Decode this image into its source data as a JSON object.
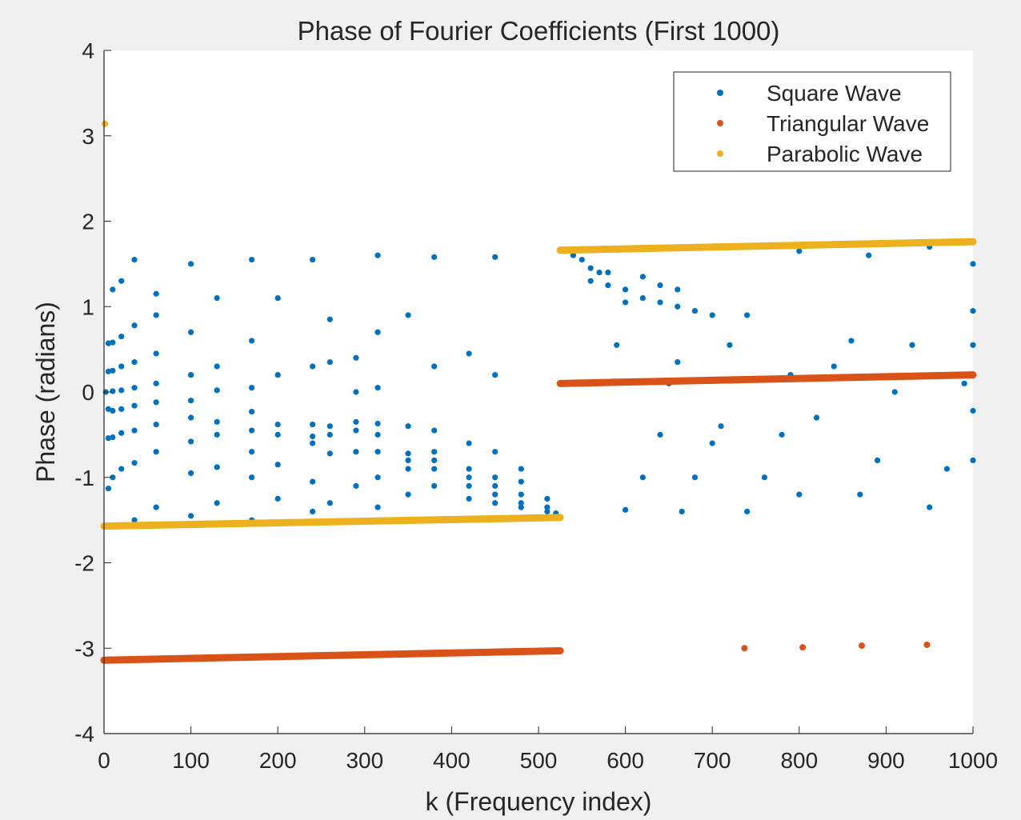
{
  "chart_data": {
    "type": "scatter",
    "title": "Phase of Fourier Coefficients (First 1000)",
    "xlabel": "k (Frequency index)",
    "ylabel": "Phase (radians)",
    "xlim": [
      0,
      1000
    ],
    "ylim": [
      -4,
      4
    ],
    "xticks": [
      "0",
      "100",
      "200",
      "300",
      "400",
      "500",
      "600",
      "700",
      "800",
      "900",
      "1000"
    ],
    "yticks": [
      "4",
      "3",
      "2",
      "1",
      "0",
      "-1",
      "-2",
      "-3",
      "-4"
    ],
    "grid": false,
    "legend": {
      "location": "top-right",
      "entries": [
        "Square Wave",
        "Triangular Wave",
        "Parabolic Wave"
      ]
    },
    "colors": {
      "square": "#0072bd",
      "triangular": "#d95319",
      "parabolic": "#edb120"
    },
    "series": [
      {
        "name": "Square Wave",
        "color": "#0072bd",
        "description_points": [
          [
            2,
            0.0
          ],
          [
            2,
            -1.57
          ],
          [
            5,
            0.57
          ],
          [
            5,
            0.24
          ],
          [
            5,
            -0.2
          ],
          [
            5,
            -0.54
          ],
          [
            5,
            -1.13
          ],
          [
            10,
            1.2
          ],
          [
            10,
            0.58
          ],
          [
            10,
            0.25
          ],
          [
            10,
            0.01
          ],
          [
            10,
            -0.22
          ],
          [
            10,
            -0.53
          ],
          [
            10,
            -1.0
          ],
          [
            20,
            1.3
          ],
          [
            20,
            0.65
          ],
          [
            20,
            0.3
          ],
          [
            20,
            0.02
          ],
          [
            20,
            -0.2
          ],
          [
            20,
            -0.48
          ],
          [
            20,
            -0.9
          ],
          [
            35,
            1.55
          ],
          [
            35,
            0.78
          ],
          [
            35,
            0.35
          ],
          [
            35,
            0.05
          ],
          [
            35,
            -0.16
          ],
          [
            35,
            -0.45
          ],
          [
            35,
            -0.83
          ],
          [
            35,
            -1.5
          ],
          [
            60,
            1.15
          ],
          [
            60,
            0.9
          ],
          [
            60,
            0.45
          ],
          [
            60,
            0.1
          ],
          [
            60,
            -0.12
          ],
          [
            60,
            -0.38
          ],
          [
            60,
            -0.7
          ],
          [
            60,
            -1.35
          ],
          [
            100,
            1.5
          ],
          [
            100,
            0.7
          ],
          [
            100,
            0.2
          ],
          [
            100,
            -0.1
          ],
          [
            100,
            -0.3
          ],
          [
            100,
            -0.58
          ],
          [
            100,
            -0.95
          ],
          [
            100,
            -1.45
          ],
          [
            130,
            1.1
          ],
          [
            130,
            0.3
          ],
          [
            130,
            0.02
          ],
          [
            130,
            -0.35
          ],
          [
            130,
            -0.5
          ],
          [
            130,
            -0.88
          ],
          [
            130,
            -1.3
          ],
          [
            170,
            1.55
          ],
          [
            170,
            0.6
          ],
          [
            170,
            0.05
          ],
          [
            170,
            -0.23
          ],
          [
            170,
            -0.45
          ],
          [
            170,
            -0.7
          ],
          [
            170,
            -1.0
          ],
          [
            170,
            -1.5
          ],
          [
            200,
            1.1
          ],
          [
            200,
            0.2
          ],
          [
            200,
            -0.38
          ],
          [
            200,
            -0.5
          ],
          [
            200,
            -0.85
          ],
          [
            200,
            -1.25
          ],
          [
            240,
            1.55
          ],
          [
            240,
            0.3
          ],
          [
            240,
            -0.38
          ],
          [
            240,
            -0.52
          ],
          [
            240,
            -0.6
          ],
          [
            240,
            -1.05
          ],
          [
            240,
            -1.4
          ],
          [
            260,
            0.85
          ],
          [
            260,
            0.35
          ],
          [
            260,
            -0.4
          ],
          [
            260,
            -0.5
          ],
          [
            260,
            -0.72
          ],
          [
            260,
            -1.3
          ],
          [
            290,
            0.4
          ],
          [
            290,
            0.0
          ],
          [
            290,
            -0.35
          ],
          [
            290,
            -0.45
          ],
          [
            290,
            -0.7
          ],
          [
            290,
            -1.1
          ],
          [
            315,
            1.6
          ],
          [
            315,
            0.7
          ],
          [
            315,
            0.05
          ],
          [
            315,
            -0.37
          ],
          [
            315,
            -0.5
          ],
          [
            315,
            -0.7
          ],
          [
            315,
            -1.0
          ],
          [
            315,
            -1.35
          ],
          [
            350,
            0.9
          ],
          [
            350,
            -0.4
          ],
          [
            350,
            -0.72
          ],
          [
            350,
            -0.8
          ],
          [
            350,
            -0.9
          ],
          [
            350,
            -1.2
          ],
          [
            380,
            1.58
          ],
          [
            380,
            0.3
          ],
          [
            380,
            -0.45
          ],
          [
            380,
            -0.7
          ],
          [
            380,
            -0.8
          ],
          [
            380,
            -0.9
          ],
          [
            380,
            -1.1
          ],
          [
            420,
            0.45
          ],
          [
            420,
            -0.6
          ],
          [
            420,
            -0.9
          ],
          [
            420,
            -1.0
          ],
          [
            420,
            -1.1
          ],
          [
            420,
            -1.25
          ],
          [
            450,
            1.58
          ],
          [
            450,
            0.2
          ],
          [
            450,
            -0.7
          ],
          [
            450,
            -1.0
          ],
          [
            450,
            -1.1
          ],
          [
            450,
            -1.2
          ],
          [
            450,
            -1.3
          ],
          [
            480,
            -0.9
          ],
          [
            480,
            -1.05
          ],
          [
            480,
            -1.2
          ],
          [
            480,
            -1.3
          ],
          [
            480,
            -1.35
          ],
          [
            510,
            -1.25
          ],
          [
            510,
            -1.35
          ],
          [
            510,
            -1.4
          ],
          [
            520,
            -1.42
          ],
          [
            530,
            1.65
          ],
          [
            540,
            1.6
          ],
          [
            550,
            1.55
          ],
          [
            560,
            1.45
          ],
          [
            570,
            1.4
          ],
          [
            580,
            1.4
          ],
          [
            560,
            1.3
          ],
          [
            580,
            1.25
          ],
          [
            600,
            1.2
          ],
          [
            620,
            1.35
          ],
          [
            640,
            1.25
          ],
          [
            660,
            1.2
          ],
          [
            600,
            1.05
          ],
          [
            620,
            1.1
          ],
          [
            640,
            1.05
          ],
          [
            660,
            1.0
          ],
          [
            680,
            0.95
          ],
          [
            700,
            0.9
          ],
          [
            590,
            0.55
          ],
          [
            600,
            -1.38
          ],
          [
            620,
            -1.0
          ],
          [
            640,
            -0.5
          ],
          [
            650,
            0.1
          ],
          [
            660,
            0.35
          ],
          [
            665,
            -1.4
          ],
          [
            680,
            -1.0
          ],
          [
            700,
            -0.6
          ],
          [
            710,
            -0.4
          ],
          [
            720,
            0.55
          ],
          [
            740,
            0.9
          ],
          [
            740,
            -1.4
          ],
          [
            760,
            -1.0
          ],
          [
            780,
            -0.5
          ],
          [
            790,
            0.2
          ],
          [
            800,
            1.65
          ],
          [
            800,
            -1.2
          ],
          [
            820,
            -0.3
          ],
          [
            840,
            0.3
          ],
          [
            860,
            0.6
          ],
          [
            880,
            1.6
          ],
          [
            870,
            -1.2
          ],
          [
            890,
            -0.8
          ],
          [
            910,
            0.0
          ],
          [
            930,
            0.55
          ],
          [
            950,
            1.7
          ],
          [
            950,
            -1.35
          ],
          [
            970,
            -0.9
          ],
          [
            990,
            0.1
          ],
          [
            1000,
            0.95
          ],
          [
            1000,
            1.5
          ],
          [
            1000,
            0.55
          ],
          [
            1000,
            0.2
          ],
          [
            1000,
            -0.22
          ],
          [
            1000,
            -0.8
          ]
        ]
      },
      {
        "name": "Triangular Wave",
        "color": "#d95319",
        "segments": [
          {
            "x_start": 0,
            "x_end": 525,
            "y_start": -3.14,
            "y_end": -3.03
          },
          {
            "x_start": 525,
            "x_end": 1000,
            "y_start": 0.1,
            "y_end": 0.2
          }
        ],
        "isolated_points": [
          [
            737,
            -3.0
          ],
          [
            804,
            -2.99
          ],
          [
            872,
            -2.97
          ],
          [
            947,
            -2.96
          ]
        ]
      },
      {
        "name": "Parabolic Wave",
        "color": "#edb120",
        "segments": [
          {
            "x_start": 0,
            "x_end": 525,
            "y_start": -1.57,
            "y_end": -1.47
          },
          {
            "x_start": 525,
            "x_end": 1000,
            "y_start": 1.66,
            "y_end": 1.76
          }
        ],
        "isolated_points": [
          [
            1,
            3.14
          ]
        ]
      }
    ]
  }
}
